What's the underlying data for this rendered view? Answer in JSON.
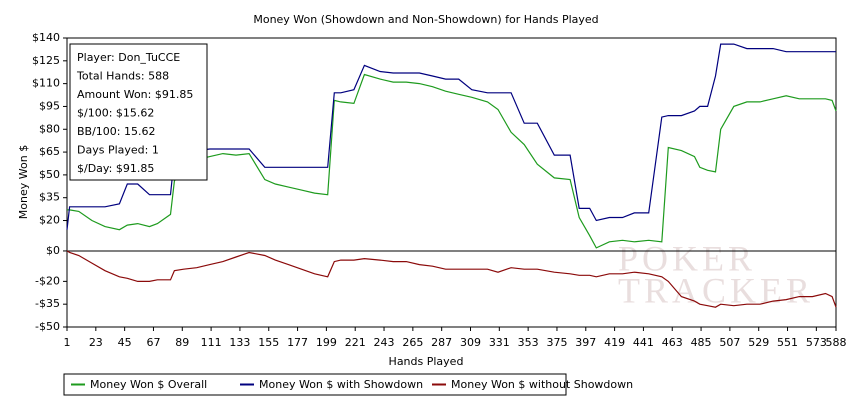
{
  "chart_data": {
    "type": "line",
    "title": "Money Won (Showdown and Non-Showdown) for Hands Played",
    "x_label": "Hands Played",
    "y_label": "Money Won $",
    "watermark": [
      "POKER",
      "TRACKER"
    ],
    "info_box": [
      "Player: Don_TuCCE",
      "Total Hands: 588",
      "Amount Won: $91.85",
      "$/100: $15.62",
      "BB/100: 15.62",
      "Days Played: 1",
      "$/Day: $91.85"
    ],
    "xlim": [
      1,
      588
    ],
    "xticks": [
      1,
      23,
      45,
      67,
      89,
      111,
      133,
      155,
      177,
      199,
      221,
      243,
      265,
      287,
      309,
      331,
      353,
      375,
      397,
      419,
      441,
      463,
      485,
      507,
      529,
      551,
      573,
      588
    ],
    "ylim": [
      -50,
      140
    ],
    "yticks": [
      {
        "value": 140,
        "label": "$140"
      },
      {
        "value": 125,
        "label": "$125"
      },
      {
        "value": 110,
        "label": "$110"
      },
      {
        "value": 95,
        "label": "$95"
      },
      {
        "value": 80,
        "label": "$80"
      },
      {
        "value": 65,
        "label": "$65"
      },
      {
        "value": 50,
        "label": "$50"
      },
      {
        "value": 35,
        "label": "$35"
      },
      {
        "value": 20,
        "label": "$20"
      },
      {
        "value": 0,
        "label": "$0"
      },
      {
        "value": -20,
        "label": "-$20"
      },
      {
        "value": -35,
        "label": "-$35"
      },
      {
        "value": -50,
        "label": "-$50"
      }
    ],
    "x": [
      1,
      3,
      10,
      20,
      30,
      41,
      47,
      55,
      64,
      70,
      80,
      83,
      90,
      100,
      110,
      120,
      130,
      140,
      152,
      160,
      170,
      180,
      190,
      200,
      205,
      210,
      220,
      228,
      240,
      250,
      260,
      270,
      280,
      290,
      300,
      310,
      322,
      330,
      340,
      350,
      360,
      373,
      385,
      392,
      400,
      405,
      415,
      425,
      434,
      445,
      455,
      460,
      470,
      480,
      484,
      490,
      496,
      500,
      510,
      520,
      530,
      540,
      550,
      560,
      570,
      580,
      585,
      588
    ],
    "series": [
      {
        "name": "Money Won $ Overall",
        "color": "#1e9b1e",
        "values": [
          27,
          27,
          26,
          20,
          16,
          14,
          17,
          18,
          16,
          18,
          24,
          46,
          55,
          60,
          62,
          64,
          63,
          64,
          47,
          44,
          42,
          40,
          38,
          37,
          99,
          98,
          97,
          116,
          113,
          111,
          111,
          110,
          108,
          105,
          103,
          101,
          98,
          93,
          78,
          70,
          57,
          48,
          47,
          22,
          10,
          2,
          6,
          7,
          6,
          7,
          6,
          68,
          66,
          62,
          55,
          53,
          52,
          80,
          95,
          98,
          98,
          100,
          102,
          100,
          100,
          100,
          99,
          92
        ]
      },
      {
        "name": "Money Won $ with Showdown",
        "color": "#00007f",
        "values": [
          14,
          29,
          29,
          29,
          29,
          31,
          44,
          44,
          37,
          37,
          37,
          62,
          65,
          66,
          67,
          67,
          67,
          67,
          55,
          55,
          55,
          55,
          55,
          55,
          104,
          104,
          106,
          122,
          118,
          117,
          117,
          117,
          115,
          113,
          113,
          106,
          104,
          104,
          104,
          84,
          84,
          63,
          63,
          28,
          28,
          20,
          22,
          22,
          25,
          25,
          88,
          89,
          89,
          92,
          95,
          95,
          115,
          136,
          136,
          133,
          133,
          133,
          131,
          131,
          131,
          131,
          131,
          131
        ]
      },
      {
        "name": "Money Won $ without Showdown",
        "color": "#8b0a0a",
        "values": [
          0,
          -1,
          -3,
          -8,
          -13,
          -17,
          -18,
          -20,
          -20,
          -19,
          -19,
          -13,
          -12,
          -11,
          -9,
          -7,
          -4,
          -1,
          -3,
          -6,
          -9,
          -12,
          -15,
          -17,
          -7,
          -6,
          -6,
          -5,
          -6,
          -7,
          -7,
          -9,
          -10,
          -12,
          -12,
          -12,
          -12,
          -14,
          -11,
          -12,
          -12,
          -14,
          -15,
          -16,
          -16,
          -17,
          -15,
          -15,
          -14,
          -15,
          -17,
          -20,
          -30,
          -33,
          -35,
          -36,
          -37,
          -35,
          -36,
          -35,
          -35,
          -33,
          -32,
          -30,
          -30,
          -28,
          -30,
          -37
        ]
      }
    ]
  }
}
